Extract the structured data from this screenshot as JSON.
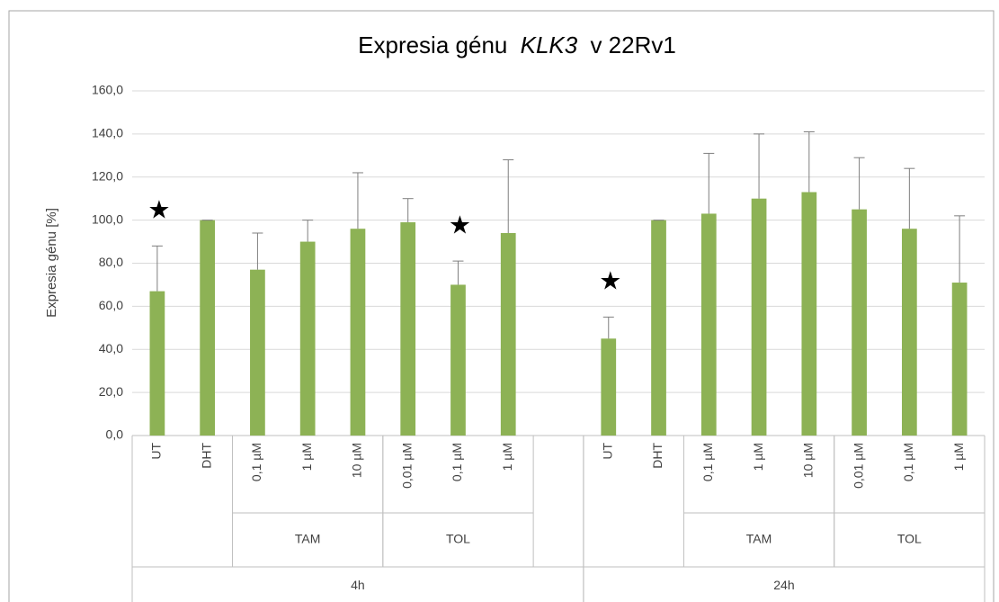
{
  "chart_data": {
    "type": "bar",
    "title_parts": [
      "Expresia génu",
      "KLK3",
      "v 22Rv1"
    ],
    "y_label": "Expresia génu [%]",
    "categories": [
      "UT",
      "DHT",
      "0,1 µM",
      "1 µM",
      "10 µM",
      "0,01 µM",
      "0,1 µM",
      "1 µM",
      null,
      "UT",
      "DHT",
      "0,1 µM",
      "1 µM",
      "10 µM",
      "0,01 µM",
      "0,1 µM",
      "1 µM"
    ],
    "groups": [
      {
        "label": "TAM",
        "start": 2,
        "end": 4
      },
      {
        "label": "TOL",
        "start": 5,
        "end": 7
      },
      {
        "label": "TAM",
        "start": 11,
        "end": 13
      },
      {
        "label": "TOL",
        "start": 14,
        "end": 16
      }
    ],
    "top_groups": [
      {
        "label": "4h",
        "start": 0,
        "end": 8
      },
      {
        "label": "24h",
        "start": 9,
        "end": 16
      }
    ],
    "series": [
      {
        "name": "Expresia",
        "color": "#8db255",
        "values": [
          67,
          100,
          77,
          90,
          96,
          99,
          70,
          94,
          null,
          45,
          100,
          103,
          110,
          113,
          105,
          96,
          71
        ],
        "errors": [
          21,
          0,
          17,
          10,
          26,
          11,
          11,
          34,
          null,
          10,
          0,
          28,
          30,
          28,
          24,
          28,
          31
        ]
      }
    ],
    "markers": {
      "symbol": "★",
      "at": [
        0,
        6,
        9
      ]
    },
    "ylim": [
      0,
      160
    ],
    "yticks": [
      {
        "value": 0,
        "label": "0,0"
      },
      {
        "value": 20,
        "label": "20,0"
      },
      {
        "value": 40,
        "label": "40,0"
      },
      {
        "value": 60,
        "label": "60,0"
      },
      {
        "value": 80,
        "label": "80,0"
      },
      {
        "value": 100,
        "label": "100,0"
      },
      {
        "value": 120,
        "label": "120,0"
      },
      {
        "value": 140,
        "label": "140,0"
      },
      {
        "value": 160,
        "label": "160,0"
      }
    ],
    "grid": true
  }
}
